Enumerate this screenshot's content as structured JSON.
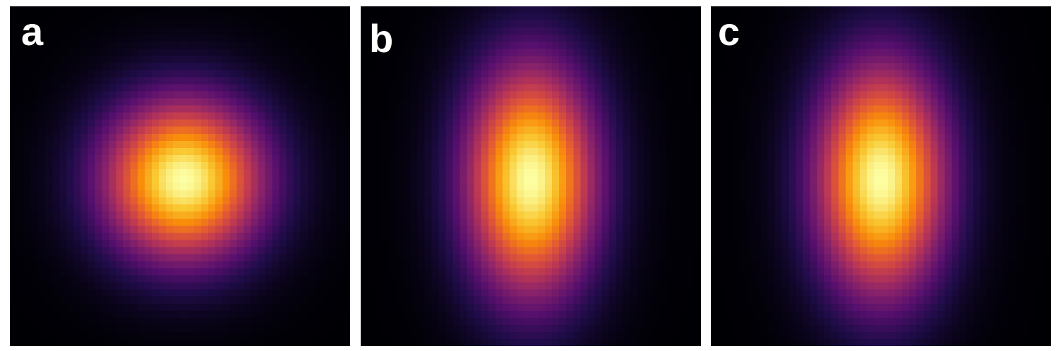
{
  "colormap": "inferno",
  "background": "#ffffff",
  "chart_data": [
    {
      "type": "heatmap",
      "label": "a",
      "grid": [
        48,
        48
      ],
      "value_range": [
        0,
        1
      ],
      "center": [
        24.5,
        24.5
      ],
      "sigma": [
        8.0,
        8.0
      ],
      "scale": 1.0
    },
    {
      "type": "heatmap",
      "label": "b",
      "grid": [
        48,
        48
      ],
      "value_range": [
        0,
        1
      ],
      "center": [
        24,
        24.5
      ],
      "sigma": [
        6.5,
        11.5
      ],
      "scale": 1.0
    },
    {
      "type": "heatmap",
      "label": "c",
      "grid": [
        48,
        48
      ],
      "value_range": [
        0,
        1
      ],
      "center": [
        24,
        24.5
      ],
      "sigma": [
        6.5,
        11.5
      ],
      "scale": 1.0
    }
  ]
}
